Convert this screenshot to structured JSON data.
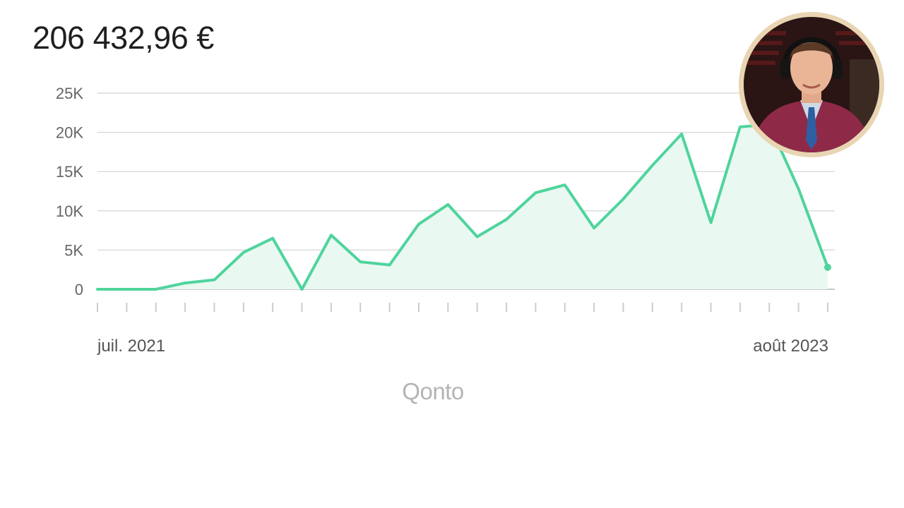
{
  "header": {
    "total": "206 432,96 €"
  },
  "brand": {
    "name": "Qonto"
  },
  "colors": {
    "line": "#4fd49c",
    "area": "#eaf8f2",
    "grid": "#dcdcdc",
    "label": "#666666"
  },
  "chart_data": {
    "type": "area",
    "x_start_label": "juil. 2021",
    "x_end_label": "août 2023",
    "x": [
      "2021-07",
      "2021-08",
      "2021-09",
      "2021-10",
      "2021-11",
      "2021-12",
      "2022-01",
      "2022-02",
      "2022-03",
      "2022-04",
      "2022-05",
      "2022-06",
      "2022-07",
      "2022-08",
      "2022-09",
      "2022-10",
      "2022-11",
      "2022-12",
      "2023-01",
      "2023-02",
      "2023-03",
      "2023-04",
      "2023-05",
      "2023-06",
      "2023-07",
      "2023-08"
    ],
    "values": [
      0,
      0,
      0,
      800,
      1200,
      4700,
      6500,
      0,
      6900,
      3500,
      3100,
      8300,
      10800,
      6700,
      8900,
      12300,
      13300,
      7800,
      11500,
      15800,
      19800,
      8500,
      20700,
      21000,
      12800,
      2800
    ],
    "yticks": [
      0,
      5000,
      10000,
      15000,
      20000,
      25000
    ],
    "ytick_labels": [
      "0",
      "5K",
      "10K",
      "15K",
      "20K",
      "25K"
    ],
    "ylim": [
      0,
      25000
    ],
    "grid": true,
    "legend": "none"
  }
}
